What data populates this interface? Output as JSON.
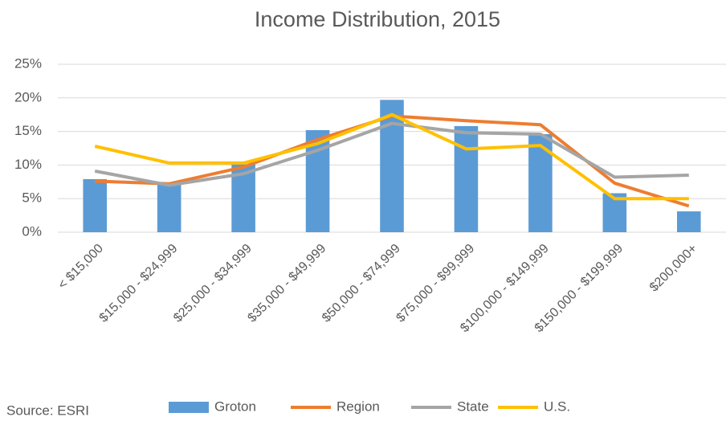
{
  "chart_data": {
    "type": "bar",
    "title": "Income Distribution, 2015",
    "source": "Source: ESRI",
    "categories": [
      "< $15,000",
      "$15,000 - $24,999",
      "$25,000 - $34,999",
      "$35,000 - $49,999",
      "$50,000 - $74,999",
      "$75,000 - $99,999",
      "$100,000 - $149,999",
      "$150,000 - $199,999",
      "$200,000+"
    ],
    "series": [
      {
        "name": "Groton",
        "type": "bar",
        "color": "#5b9bd5",
        "values": [
          7.9,
          7.4,
          10.1,
          15.2,
          19.7,
          15.8,
          14.6,
          5.8,
          3.1
        ]
      },
      {
        "name": "Region",
        "type": "line",
        "color": "#ed7d31",
        "values": [
          7.6,
          7.2,
          9.7,
          13.8,
          17.3,
          16.6,
          16.0,
          7.3,
          3.9
        ]
      },
      {
        "name": "State",
        "type": "line",
        "color": "#a5a5a5",
        "values": [
          9.1,
          7.0,
          8.7,
          12.2,
          16.2,
          14.8,
          14.6,
          8.2,
          8.5
        ]
      },
      {
        "name": "U.S.",
        "type": "line",
        "color": "#ffc000",
        "values": [
          12.8,
          10.3,
          10.3,
          13.2,
          17.5,
          12.4,
          12.9,
          5.0,
          5.0
        ]
      }
    ],
    "ylim": [
      0,
      25
    ],
    "yticks": [
      {
        "value": 0,
        "label": "0%"
      },
      {
        "value": 5,
        "label": "5%"
      },
      {
        "value": 10,
        "label": "10%"
      },
      {
        "value": 15,
        "label": "15%"
      },
      {
        "value": 20,
        "label": "20%"
      },
      {
        "value": 25,
        "label": "25%"
      }
    ],
    "grid": true,
    "legend": "bottom"
  }
}
